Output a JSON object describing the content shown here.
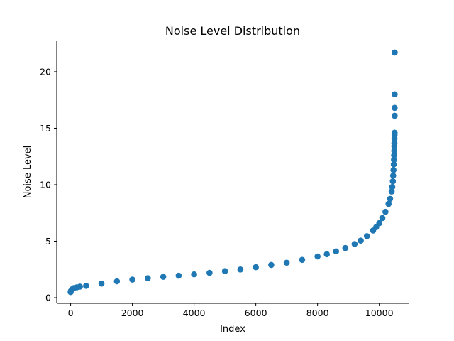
{
  "chart_data": {
    "type": "scatter",
    "title": "Noise Level Distribution",
    "xlabel": "Index",
    "ylabel": "Noise Level",
    "xlim": [
      -450,
      10950
    ],
    "ylim": [
      -0.5,
      22.7
    ],
    "xticks": [
      0,
      2000,
      4000,
      6000,
      8000,
      10000
    ],
    "yticks": [
      0,
      5,
      10,
      15,
      20
    ],
    "grid": false,
    "legend": "none",
    "marker_color": "#1f77b4",
    "series": [
      {
        "x": [
          0,
          10,
          50,
          100,
          200,
          300,
          500,
          1000,
          1500,
          2000,
          2500,
          3000,
          3500,
          4000,
          4500,
          5000,
          5500,
          6000,
          6500,
          7000,
          7500,
          8000,
          8300,
          8600,
          8900,
          9200,
          9400,
          9600,
          9800,
          9900,
          10000,
          10100,
          10200,
          10300,
          10350,
          10400,
          10420,
          10440,
          10450,
          10460,
          10470,
          10475,
          10480,
          10485,
          10488,
          10490,
          10492,
          10494,
          10496,
          10497,
          10498,
          10499,
          10500
        ],
        "y": [
          0.5,
          0.6,
          0.75,
          0.85,
          0.92,
          0.98,
          1.05,
          1.25,
          1.45,
          1.6,
          1.73,
          1.85,
          1.95,
          2.07,
          2.2,
          2.35,
          2.5,
          2.7,
          2.9,
          3.1,
          3.35,
          3.65,
          3.85,
          4.1,
          4.4,
          4.75,
          5.05,
          5.45,
          5.95,
          6.25,
          6.6,
          7.05,
          7.6,
          8.3,
          8.75,
          9.4,
          9.8,
          10.3,
          10.8,
          11.3,
          11.8,
          12.2,
          12.6,
          13.0,
          13.4,
          13.7,
          14.1,
          14.4,
          14.6,
          16.1,
          16.8,
          18.0,
          21.7
        ]
      }
    ]
  }
}
